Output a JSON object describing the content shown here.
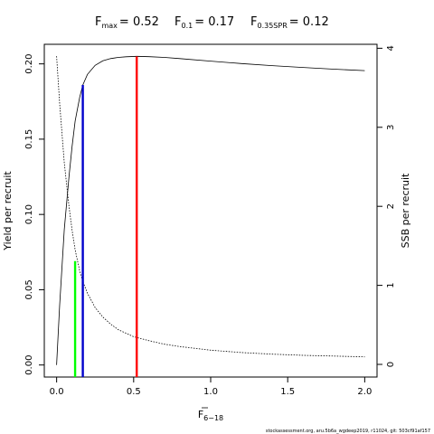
{
  "chart_data": {
    "type": "line",
    "title": {
      "fmax": {
        "base": "F",
        "sub": "max",
        "value": "= 0.52"
      },
      "f01": {
        "base": "F",
        "sub": "0.1",
        "value": "= 0.17"
      },
      "f035": {
        "base": "F",
        "sub": "0.35SPR",
        "value": "= 0.12"
      }
    },
    "xlabel": {
      "base": "F",
      "sub": "6−18"
    },
    "ylabel_left": "Yield per recruit",
    "ylabel_right": "SSB per recruit",
    "xlim": [
      -0.08,
      2.08
    ],
    "ylim_left": [
      -0.008,
      0.213
    ],
    "ylim_right": [
      -0.16,
      4.05
    ],
    "x_ticks": [
      0,
      0.5,
      1,
      1.5,
      2
    ],
    "x_tick_labels": [
      "0.0",
      "0.5",
      "1.0",
      "1.5",
      "2.0"
    ],
    "y_ticks_left": [
      0,
      0.05,
      0.1,
      0.15,
      0.2
    ],
    "y_tick_labels_left": [
      "0.00",
      "0.05",
      "0.10",
      "0.15",
      "0.20"
    ],
    "y_ticks_right": [
      0,
      1,
      2,
      3,
      4
    ],
    "y_tick_labels_right": [
      "0",
      "1",
      "2",
      "3",
      "4"
    ],
    "series": [
      {
        "name": "Yield per recruit",
        "axis": "left",
        "style": "solid",
        "color": "#000000",
        "x": [
          0,
          0.02,
          0.05,
          0.08,
          0.1,
          0.12,
          0.15,
          0.17,
          0.2,
          0.25,
          0.3,
          0.35,
          0.4,
          0.45,
          0.52,
          0.6,
          0.7,
          0.8,
          1.0,
          1.2,
          1.4,
          1.6,
          1.8,
          2.0
        ],
        "y": [
          0,
          0.04,
          0.09,
          0.125,
          0.145,
          0.162,
          0.178,
          0.186,
          0.193,
          0.199,
          0.202,
          0.2035,
          0.2043,
          0.2047,
          0.205,
          0.2048,
          0.2043,
          0.2035,
          0.2018,
          0.2002,
          0.1988,
          0.1976,
          0.1965,
          0.1955
        ]
      },
      {
        "name": "SSB per recruit",
        "axis": "right",
        "style": "dotted",
        "color": "#000000",
        "x": [
          0,
          0.02,
          0.05,
          0.08,
          0.1,
          0.12,
          0.15,
          0.17,
          0.2,
          0.25,
          0.3,
          0.35,
          0.4,
          0.5,
          0.6,
          0.7,
          0.8,
          1.0,
          1.2,
          1.4,
          1.6,
          1.8,
          2.0
        ],
        "y": [
          3.9,
          3.3,
          2.55,
          2.0,
          1.7,
          1.45,
          1.18,
          1.05,
          0.9,
          0.72,
          0.6,
          0.51,
          0.44,
          0.35,
          0.3,
          0.255,
          0.225,
          0.18,
          0.15,
          0.13,
          0.115,
          0.105,
          0.095
        ]
      }
    ],
    "reference_lines": [
      {
        "name": "Fmax",
        "x": 0.52,
        "y": 0.205,
        "axis": "left",
        "color": "#ff0000"
      },
      {
        "name": "F0.1",
        "x": 0.17,
        "y": 0.186,
        "axis": "left",
        "color": "#0000cc"
      },
      {
        "name": "F0.35SPR",
        "x": 0.12,
        "y": 0.069,
        "axis": "left",
        "color": "#00ff00"
      }
    ],
    "footnote": "stockassessment.org, aru.5b6a_wgdeep2019, r11024, git: 503cf91af157"
  }
}
